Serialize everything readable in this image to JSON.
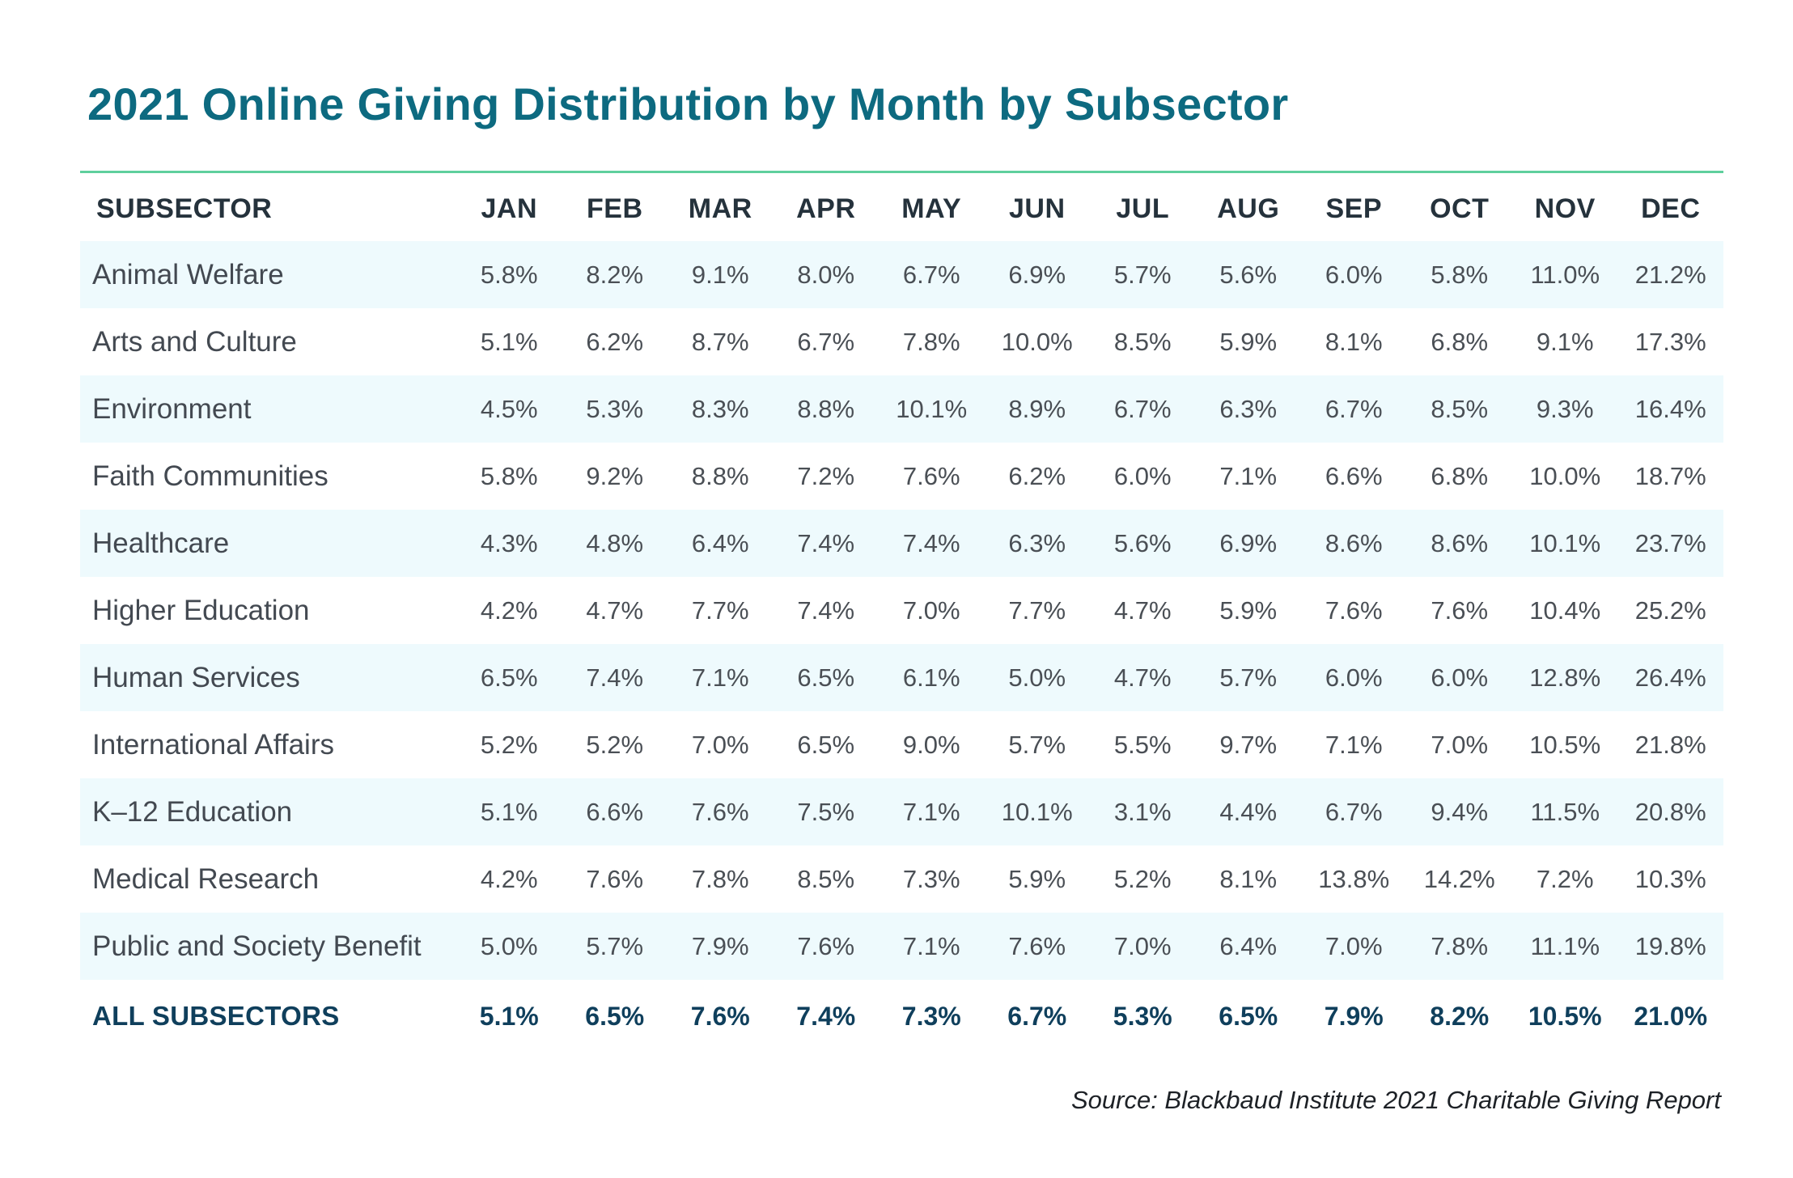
{
  "chart_data": {
    "type": "table",
    "title": "2021 Online Giving Distribution by Month by Subsector",
    "columns": [
      "SUBSECTOR",
      "JAN",
      "FEB",
      "MAR",
      "APR",
      "MAY",
      "JUN",
      "JUL",
      "AUG",
      "SEP",
      "OCT",
      "NOV",
      "DEC"
    ],
    "rows": [
      {
        "name": "Animal Welfare",
        "values": [
          "5.8%",
          "8.2%",
          "9.1%",
          "8.0%",
          "6.7%",
          "6.9%",
          "5.7%",
          "5.6%",
          "6.0%",
          "5.8%",
          "11.0%",
          "21.2%"
        ]
      },
      {
        "name": "Arts and Culture",
        "values": [
          "5.1%",
          "6.2%",
          "8.7%",
          "6.7%",
          "7.8%",
          "10.0%",
          "8.5%",
          "5.9%",
          "8.1%",
          "6.8%",
          "9.1%",
          "17.3%"
        ]
      },
      {
        "name": "Environment",
        "values": [
          "4.5%",
          "5.3%",
          "8.3%",
          "8.8%",
          "10.1%",
          "8.9%",
          "6.7%",
          "6.3%",
          "6.7%",
          "8.5%",
          "9.3%",
          "16.4%"
        ]
      },
      {
        "name": "Faith Communities",
        "values": [
          "5.8%",
          "9.2%",
          "8.8%",
          "7.2%",
          "7.6%",
          "6.2%",
          "6.0%",
          "7.1%",
          "6.6%",
          "6.8%",
          "10.0%",
          "18.7%"
        ]
      },
      {
        "name": "Healthcare",
        "values": [
          "4.3%",
          "4.8%",
          "6.4%",
          "7.4%",
          "7.4%",
          "6.3%",
          "5.6%",
          "6.9%",
          "8.6%",
          "8.6%",
          "10.1%",
          "23.7%"
        ]
      },
      {
        "name": "Higher Education",
        "values": [
          "4.2%",
          "4.7%",
          "7.7%",
          "7.4%",
          "7.0%",
          "7.7%",
          "4.7%",
          "5.9%",
          "7.6%",
          "7.6%",
          "10.4%",
          "25.2%"
        ]
      },
      {
        "name": "Human Services",
        "values": [
          "6.5%",
          "7.4%",
          "7.1%",
          "6.5%",
          "6.1%",
          "5.0%",
          "4.7%",
          "5.7%",
          "6.0%",
          "6.0%",
          "12.8%",
          "26.4%"
        ]
      },
      {
        "name": "International Affairs",
        "values": [
          "5.2%",
          "5.2%",
          "7.0%",
          "6.5%",
          "9.0%",
          "5.7%",
          "5.5%",
          "9.7%",
          "7.1%",
          "7.0%",
          "10.5%",
          "21.8%"
        ]
      },
      {
        "name": "K–12 Education",
        "values": [
          "5.1%",
          "6.6%",
          "7.6%",
          "7.5%",
          "7.1%",
          "10.1%",
          "3.1%",
          "4.4%",
          "6.7%",
          "9.4%",
          "11.5%",
          "20.8%"
        ]
      },
      {
        "name": "Medical Research",
        "values": [
          "4.2%",
          "7.6%",
          "7.8%",
          "8.5%",
          "7.3%",
          "5.9%",
          "5.2%",
          "8.1%",
          "13.8%",
          "14.2%",
          "7.2%",
          "10.3%"
        ]
      },
      {
        "name": "Public and Society Benefit",
        "values": [
          "5.0%",
          "5.7%",
          "7.9%",
          "7.6%",
          "7.1%",
          "7.6%",
          "7.0%",
          "6.4%",
          "7.0%",
          "7.8%",
          "11.1%",
          "19.8%"
        ]
      }
    ],
    "total": {
      "name": "ALL SUBSECTORS",
      "values": [
        "5.1%",
        "6.5%",
        "7.6%",
        "7.4%",
        "7.3%",
        "6.7%",
        "5.3%",
        "6.5%",
        "7.9%",
        "8.2%",
        "10.5%",
        "21.0%"
      ]
    },
    "source": "Source: Blackbaud Institute 2021 Charitable Giving Report"
  },
  "colors": {
    "title": "#0d6a80",
    "rule": "#5fcf9d",
    "row_shade": "#eefafd",
    "header_text": "#25323c",
    "body_text": "#4a4f55",
    "total_text": "#0f3f5c"
  }
}
